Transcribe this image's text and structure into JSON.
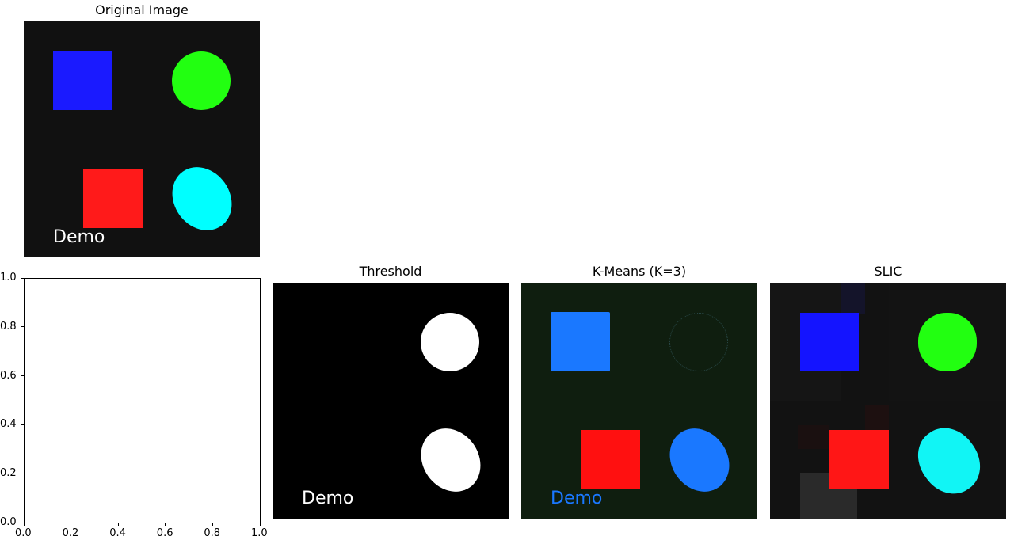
{
  "panels": {
    "original": {
      "title": "Original Image",
      "demo_text": "Demo"
    },
    "threshold": {
      "title": "Threshold",
      "demo_text": "Demo"
    },
    "kmeans": {
      "title": "K-Means (K=3)",
      "demo_text": "Demo"
    },
    "slic": {
      "title": "SLIC"
    }
  },
  "chart_data": {
    "type": "scatter",
    "title": "",
    "xlabel": "",
    "ylabel": "",
    "xlim": [
      0.0,
      1.0
    ],
    "ylim": [
      0.0,
      1.0
    ],
    "x_ticks": [
      "0.0",
      "0.2",
      "0.4",
      "0.6",
      "0.8",
      "1.0"
    ],
    "y_ticks": [
      "0.0",
      "0.2",
      "0.4",
      "0.6",
      "0.8",
      "1.0"
    ],
    "series": []
  },
  "colors": {
    "original_bg": "#101010",
    "blue": "#1a1aff",
    "green": "#22ff11",
    "red": "#ff1a1a",
    "cyan": "#00ffff",
    "kmeans_bg": "#0f1e0f",
    "kmeans_blue": "#1a78ff"
  }
}
